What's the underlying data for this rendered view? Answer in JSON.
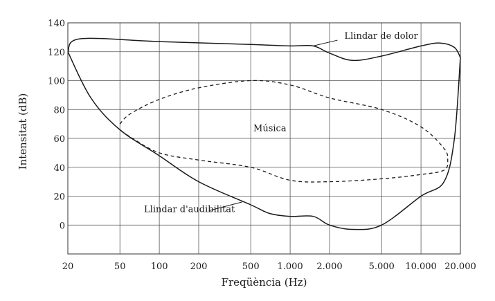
{
  "chart_data": {
    "type": "line",
    "title": "",
    "xlabel": "Freqüència (Hz)",
    "ylabel": "Intensitat (dB)",
    "xscale": "log",
    "xlim": [
      20,
      20000
    ],
    "ylim": [
      -20,
      140
    ],
    "grid": true,
    "x_ticks": [
      20,
      50,
      100,
      200,
      500,
      1000,
      2000,
      5000,
      10000,
      20000
    ],
    "x_tick_labels": [
      "20",
      "50",
      "100",
      "200",
      "500",
      "1.000",
      "2.000",
      "5.000",
      "10.000",
      "20.000"
    ],
    "y_ticks": [
      -20,
      0,
      20,
      40,
      60,
      80,
      100,
      120,
      140
    ],
    "y_tick_labels": [
      "",
      "0",
      "20",
      "40",
      "60",
      "80",
      "100",
      "120",
      "140"
    ],
    "series": [
      {
        "name": "Llindar de dolor",
        "style": "solid",
        "x": [
          20,
          25,
          100,
          500,
          1000,
          1500,
          2000,
          3000,
          5000,
          10000,
          14000,
          18000,
          20000
        ],
        "y": [
          120,
          129,
          127,
          125,
          124,
          124,
          119,
          114,
          117,
          124,
          126,
          123,
          116
        ]
      },
      {
        "name": "Llindar d'audibilitat",
        "style": "solid",
        "x": [
          20,
          30,
          50,
          100,
          200,
          500,
          700,
          1000,
          1500,
          2000,
          3000,
          5000,
          10000,
          15000,
          18000,
          20000
        ],
        "y": [
          120,
          88,
          66,
          48,
          30,
          14,
          8,
          6,
          6,
          0,
          -3,
          0,
          20,
          30,
          60,
          116
        ]
      },
      {
        "name": "Música",
        "style": "dashed",
        "x": [
          50,
          60,
          100,
          200,
          500,
          1000,
          2000,
          5000,
          10000,
          15000,
          16000,
          15000,
          10000,
          5000,
          2000,
          1000,
          500,
          200,
          100,
          60,
          50
        ],
        "y": [
          70,
          77,
          87,
          95,
          100,
          97,
          88,
          80,
          68,
          53,
          45,
          38,
          35,
          32,
          30,
          31,
          40,
          45,
          50,
          61,
          66
        ]
      }
    ],
    "annotations": [
      {
        "text": "Llindar de dolor",
        "x": 2600,
        "y": 130
      },
      {
        "text": "Música",
        "x": 700,
        "y": 65
      },
      {
        "text": "Llindar d'audibilitat",
        "x": 170,
        "y": 10
      }
    ]
  }
}
